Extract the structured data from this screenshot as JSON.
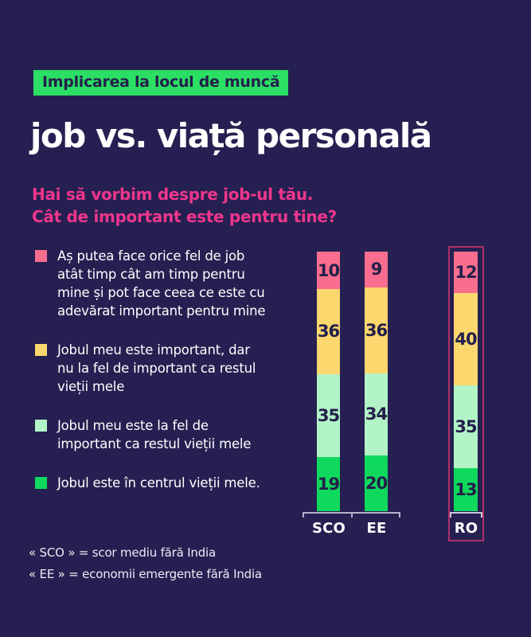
{
  "header": {
    "badge": "Implicarea la locul de muncă",
    "title": "job vs. viață personală",
    "subtitle": "Hai să vorbim despre job-ul tău.\nCât de important este pentru tine?"
  },
  "colors": {
    "background": "#252051",
    "badge_green": "#2BDF64",
    "accent_pink_text": "#F0368C",
    "segment_pink": "#F96D8E",
    "segment_yellow": "#FBD76E",
    "segment_mint": "#B3F4C7",
    "segment_green": "#0FD95C",
    "segment_value_text": "#241F4B",
    "ro_highlight_border": "#AF2F6B",
    "axis": "#B6B2CC",
    "text_white": "#FFFFFF"
  },
  "legend": [
    {
      "color": "#F96D8E",
      "label": "Aș putea face orice fel de job\natât timp cât am timp pentru\nmine și pot face ceea ce este cu\nadevărat important pentru mine"
    },
    {
      "color": "#FBD76E",
      "label": "Jobul meu este important, dar\nnu la fel de important ca restul\nvieții mele"
    },
    {
      "color": "#B3F4C7",
      "label": "Jobul meu este la fel de\nimportant ca restul vieții mele"
    },
    {
      "color": "#0FD95C",
      "label": "Jobul este în centrul vieții mele."
    }
  ],
  "chart_data": {
    "type": "bar",
    "stacked": true,
    "categories": [
      "SCO",
      "EE",
      "RO"
    ],
    "series": [
      {
        "key": "orice-job-daca-am-timp",
        "name": "Aș putea face orice fel de job atât timp cât am timp pentru mine și pot face ceea ce este cu adevărat important pentru mine",
        "color": "#F96D8E",
        "values": [
          10,
          9,
          12
        ]
      },
      {
        "key": "important-dar-mai-putin",
        "name": "Jobul meu este important, dar nu la fel de important ca restul vieții mele",
        "color": "#FBD76E",
        "values": [
          36,
          36,
          40
        ]
      },
      {
        "key": "la-fel-de-important",
        "name": "Jobul meu este la fel de important ca restul vieții mele",
        "color": "#B3F4C7",
        "values": [
          35,
          34,
          35
        ]
      },
      {
        "key": "in-centrul-vietii",
        "name": "Jobul este în centrul vieții mele.",
        "color": "#0FD95C",
        "values": [
          19,
          20,
          13
        ]
      }
    ],
    "highlighted_category": "RO",
    "legend_position": "left",
    "value_labels": "inside"
  },
  "footnotes": [
    "« SCO » = scor mediu fără India",
    "« EE » = economii emergente fără India"
  ]
}
